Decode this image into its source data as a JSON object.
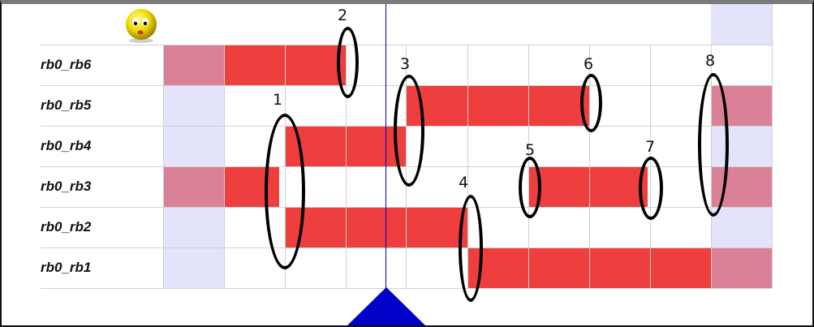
{
  "rows": [
    {
      "label": "rb0_rb6"
    },
    {
      "label": "rb0_rb5"
    },
    {
      "label": "rb0_rb4"
    },
    {
      "label": "rb0_rb3"
    },
    {
      "label": "rb0_rb2"
    },
    {
      "label": "rb0_rb1"
    }
  ],
  "annotations": [
    "1",
    "2",
    "3",
    "4",
    "5",
    "6",
    "7",
    "8"
  ],
  "icons": {
    "avatar": "sad-face-icon",
    "playhead": "playhead-triangle-icon"
  },
  "colors": {
    "active_bar": "#ee3e3e",
    "muted_cell": "#da8197",
    "empty_cell": "#e3e3fb",
    "playhead": "#0000c8"
  }
}
